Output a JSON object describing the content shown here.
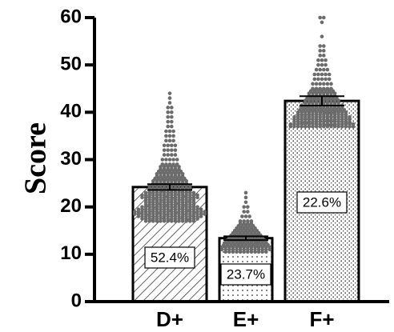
{
  "chart_data": {
    "type": "bar",
    "title": "",
    "xlabel": "",
    "ylabel": "Score",
    "ylim": [
      0,
      60
    ],
    "yticks": [
      0,
      10,
      20,
      30,
      40,
      50,
      60
    ],
    "grid": false,
    "categories": [
      "D+",
      "E+",
      "F+"
    ],
    "values": [
      24.2,
      13.4,
      42.4
    ],
    "error": [
      0.6,
      0.4,
      1.0
    ],
    "bar_labels": [
      "52.4%",
      "23.7%",
      "22.6%"
    ],
    "patterns": [
      "diagonal-hatch",
      "light-dots",
      "dense-dots"
    ],
    "point_color": "#6b6b6b",
    "points": [
      [
        17.0,
        17.5,
        18.0,
        18.5,
        19.0,
        19.5,
        20.0,
        20.5,
        21.0,
        21.5,
        22.0,
        22.5,
        23.0,
        23.5,
        24.0,
        24.5,
        25.0,
        25.5,
        26.0,
        26.5,
        27.0,
        27.5,
        28.0,
        28.5,
        29.0,
        30.0,
        31.0,
        32.0,
        33.0,
        34.0,
        35.0,
        36.0,
        37.0,
        38.0,
        39.0,
        40.0,
        41.0,
        42.0,
        43.0,
        44.0
      ],
      [
        10.5,
        11.0,
        11.5,
        12.0,
        12.5,
        13.0,
        13.5,
        14.0,
        14.5,
        15.0,
        15.5,
        16.0,
        16.5,
        17.0,
        18.0,
        19.0,
        20.0,
        21.0,
        22.0,
        23.0
      ],
      [
        37.0,
        37.5,
        38.0,
        38.5,
        39.0,
        39.5,
        40.0,
        40.5,
        41.0,
        41.5,
        42.0,
        42.5,
        43.0,
        43.5,
        44.0,
        44.5,
        45.0,
        46.0,
        47.0,
        48.0,
        49.0,
        50.0,
        51.0,
        52.0,
        53.0,
        54.0,
        56.0,
        59.0,
        60.0
      ]
    ],
    "point_counts": [
      [
        14,
        16,
        18,
        20,
        20,
        18,
        16,
        14,
        14,
        14,
        16,
        16,
        14,
        12,
        12,
        12,
        10,
        10,
        9,
        8,
        8,
        7,
        6,
        6,
        5,
        5,
        4,
        4,
        4,
        3,
        3,
        3,
        2,
        2,
        2,
        2,
        2,
        1,
        1,
        1
      ],
      [
        12,
        14,
        14,
        13,
        12,
        11,
        10,
        9,
        8,
        7,
        6,
        5,
        4,
        4,
        3,
        2,
        2,
        1,
        1,
        1
      ],
      [
        18,
        18,
        16,
        16,
        16,
        14,
        14,
        13,
        12,
        12,
        10,
        10,
        9,
        8,
        8,
        7,
        6,
        6,
        5,
        5,
        4,
        3,
        3,
        2,
        2,
        2,
        1,
        1,
        2
      ]
    ]
  }
}
